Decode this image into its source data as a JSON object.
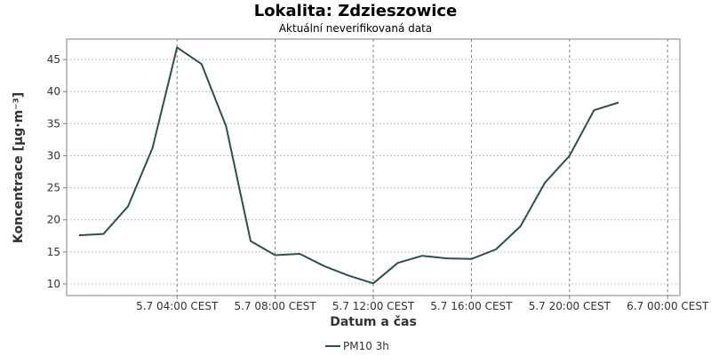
{
  "chart_data": {
    "type": "line",
    "title": "Lokalita: Zdzieszowice",
    "subtitle": "Aktuální neverifikovaná data",
    "xlabel": "Datum a čas",
    "ylabel": "Koncentrace [µg·m⁻³]",
    "x_start": "5.7 00:00 CEST",
    "x_step_hours": 1,
    "ylim": [
      8.2,
      48.2
    ],
    "yticks": [
      10,
      15,
      20,
      25,
      30,
      35,
      40,
      45
    ],
    "xticks": [
      {
        "hour": 4,
        "label": "5.7 04:00 CEST"
      },
      {
        "hour": 8,
        "label": "5.7 08:00 CEST"
      },
      {
        "hour": 12,
        "label": "5.7 12:00 CEST"
      },
      {
        "hour": 16,
        "label": "5.7 16:00 CEST"
      },
      {
        "hour": 20,
        "label": "5.7 20:00 CEST"
      },
      {
        "hour": 24,
        "label": "6.7 00:00 CEST"
      }
    ],
    "xlim": [
      -0.5,
      24.5
    ],
    "grid": true,
    "legend": "bottom-center",
    "series": [
      {
        "name": "PM10 3h",
        "color": "#2f4f4f",
        "x": [
          0,
          1,
          2,
          3,
          4,
          5,
          6,
          7,
          8,
          9,
          10,
          11,
          12,
          13,
          14,
          15,
          16,
          17,
          18,
          19,
          20,
          21,
          22,
          23
        ],
        "values": [
          17.6,
          17.8,
          22.1,
          31.2,
          46.9,
          44.3,
          34.6,
          16.7,
          14.5,
          14.7,
          12.8,
          11.3,
          10.1,
          13.3,
          14.4,
          14.0,
          13.9,
          15.4,
          19.0,
          25.8,
          30.0,
          37.1,
          38.3,
          null
        ]
      }
    ]
  }
}
